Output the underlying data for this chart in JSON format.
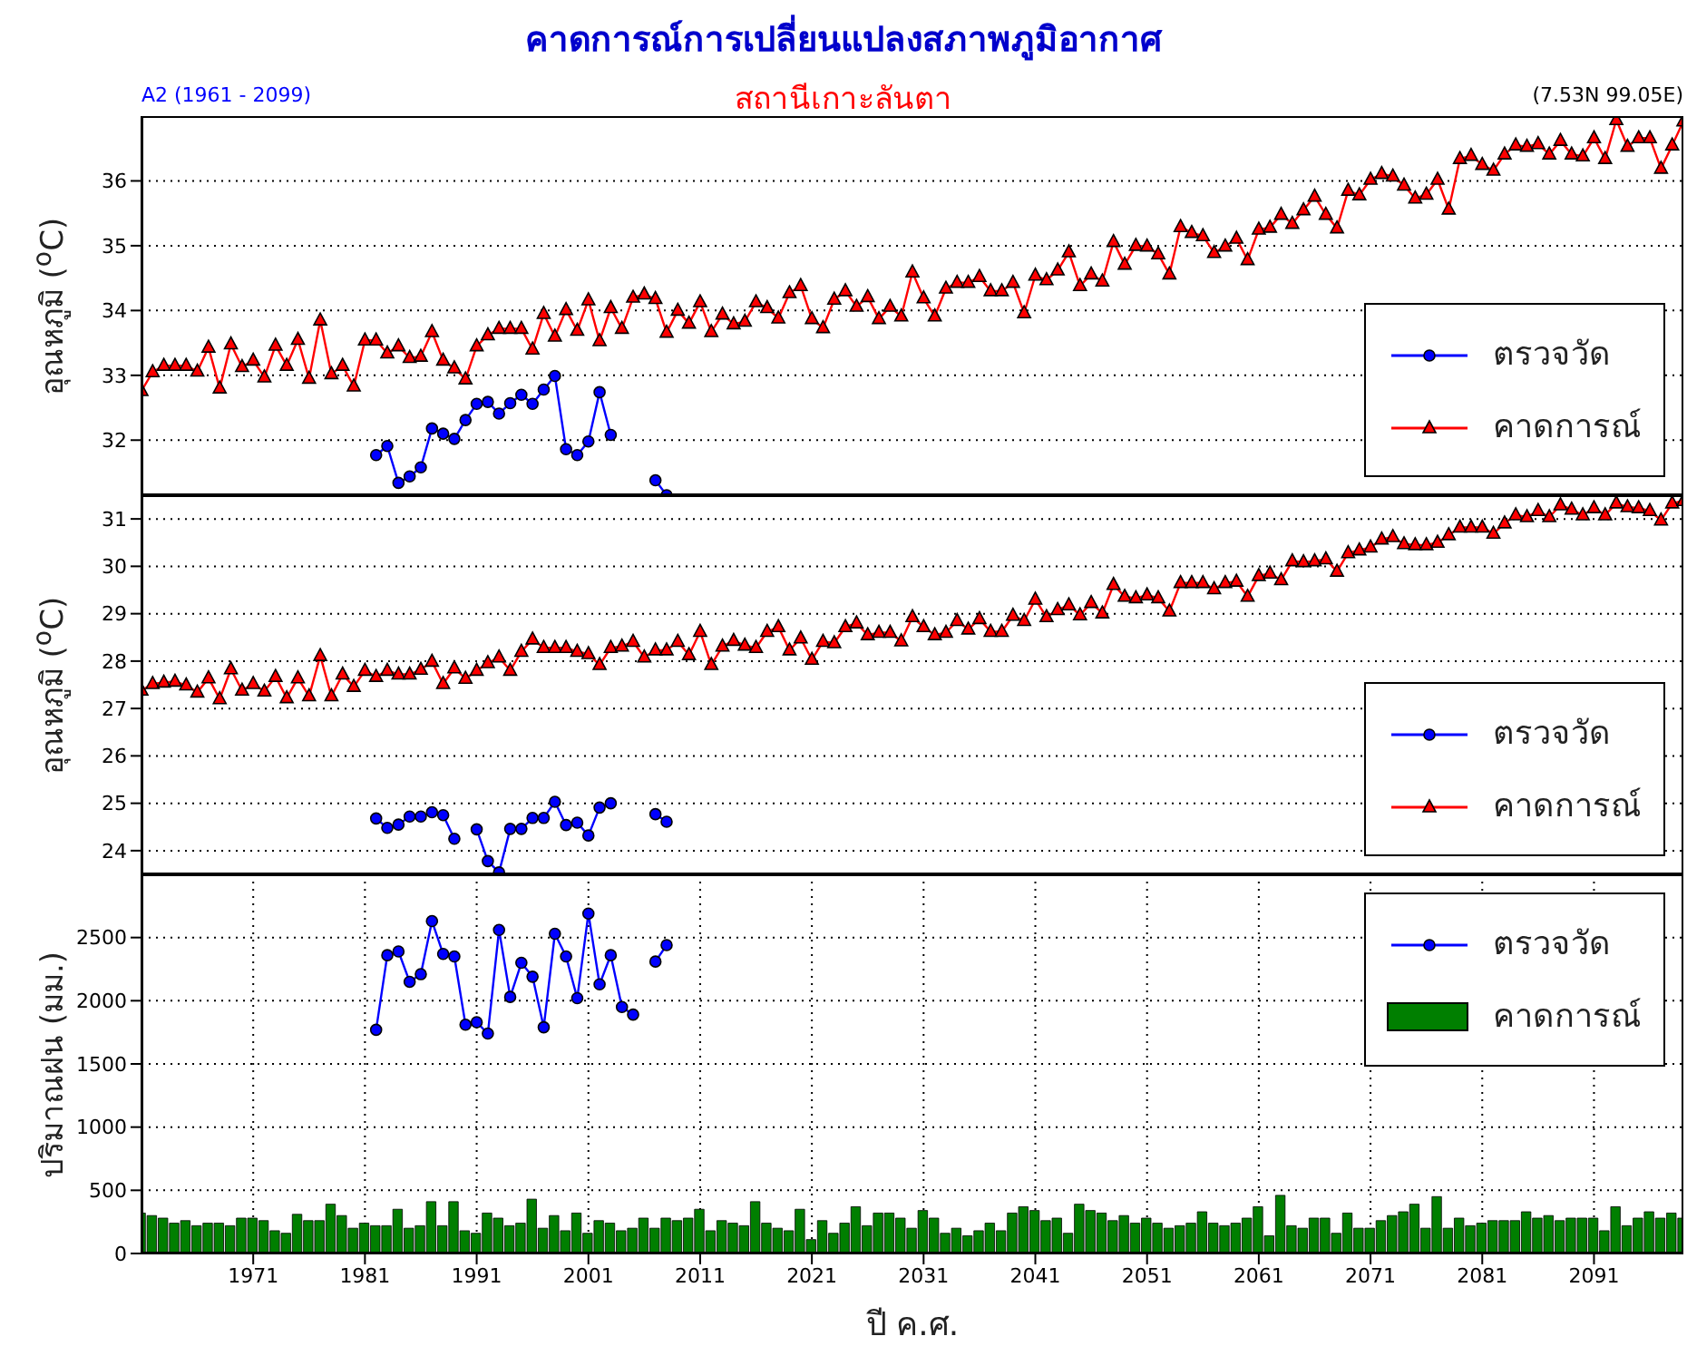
{
  "chart_data": [
    {
      "type": "line",
      "title": "คาดการณ์การเปลี่ยนแปลงสภาพภูมิอากาศ",
      "subtitle": "สถานีเกาะลันตา",
      "annotations": [
        "A2 (1961 - 2099)",
        "(7.53N 99.05E)"
      ],
      "ylabel": "อุณหภูมิ ($^{o}$C)",
      "xlim": [
        1961,
        2099
      ],
      "xticks": [
        1971,
        1981,
        1991,
        2001,
        2011,
        2021,
        2031,
        2041,
        2051,
        2061,
        2071,
        2081,
        2091
      ],
      "ylim": [
        31.15,
        37
      ],
      "yticks": [
        32,
        33,
        34,
        35,
        36
      ],
      "tick_labels": "y",
      "grid": true,
      "legend": "bottom right",
      "x": [
        1961,
        1962,
        1963,
        1964,
        1965,
        1966,
        1967,
        1968,
        1969,
        1970,
        1971,
        1972,
        1973,
        1974,
        1975,
        1976,
        1977,
        1978,
        1979,
        1980,
        1981,
        1982,
        1983,
        1984,
        1985,
        1986,
        1987,
        1988,
        1989,
        1990,
        1991,
        1992,
        1993,
        1994,
        1995,
        1996,
        1997,
        1998,
        1999,
        2000,
        2001,
        2002,
        2003,
        2004,
        2005,
        2006,
        2007,
        2008,
        2009,
        2010,
        2011,
        2012,
        2013,
        2014,
        2015,
        2016,
        2017,
        2018,
        2019,
        2020,
        2021,
        2022,
        2023,
        2024,
        2025,
        2026,
        2027,
        2028,
        2029,
        2030,
        2031,
        2032,
        2033,
        2034,
        2035,
        2036,
        2037,
        2038,
        2039,
        2040,
        2041,
        2042,
        2043,
        2044,
        2045,
        2046,
        2047,
        2048,
        2049,
        2050,
        2051,
        2052,
        2053,
        2054,
        2055,
        2056,
        2057,
        2058,
        2059,
        2060,
        2061,
        2062,
        2063,
        2064,
        2065,
        2066,
        2067,
        2068,
        2069,
        2070,
        2071,
        2072,
        2073,
        2074,
        2075,
        2076,
        2077,
        2078,
        2079,
        2080,
        2081,
        2082,
        2083,
        2084,
        2085,
        2086,
        2087,
        2088,
        2089,
        2090,
        2091,
        2092,
        2093,
        2094,
        2095,
        2096,
        2097,
        2098,
        2099
      ],
      "series": [
        {
          "name": "ตรวจวัด",
          "marker": "circle",
          "color": "#0000ff",
          "x": [
            1982,
            1983,
            1984,
            1985,
            1986,
            1987,
            1988,
            1989,
            1990,
            1991,
            1992,
            1993,
            1994,
            1995,
            1996,
            1997,
            1998,
            1999,
            2000,
            2001,
            2002,
            2003,
            2004,
            2005,
            2006,
            2007,
            2008
          ],
          "values": [
            31.77,
            31.91,
            31.34,
            31.44,
            31.58,
            32.18,
            32.1,
            32.02,
            32.31,
            32.56,
            32.59,
            32.41,
            32.57,
            32.7,
            32.56,
            32.78,
            32.99,
            31.86,
            31.77,
            31.98,
            32.74,
            32.08,
            null,
            null,
            null,
            31.38,
            31.15
          ]
        },
        {
          "name": "คาดการณ์",
          "marker": "triangle",
          "color": "#ff0000",
          "values": [
            32.76,
            33.05,
            33.15,
            33.15,
            33.15,
            33.06,
            33.43,
            32.8,
            33.48,
            33.13,
            33.23,
            32.97,
            33.46,
            33.15,
            33.55,
            32.95,
            33.85,
            33.02,
            33.15,
            32.83,
            33.54,
            33.54,
            33.34,
            33.45,
            33.27,
            33.29,
            33.67,
            33.23,
            33.11,
            32.94,
            33.45,
            33.62,
            33.72,
            33.72,
            33.72,
            33.4,
            33.95,
            33.6,
            34.01,
            33.69,
            34.16,
            33.53,
            34.04,
            33.72,
            34.2,
            34.25,
            34.18,
            33.66,
            34.0,
            33.8,
            34.13,
            33.67,
            33.94,
            33.79,
            33.83,
            34.13,
            34.04,
            33.88,
            34.27,
            34.38,
            33.87,
            33.73,
            34.17,
            34.3,
            34.06,
            34.21,
            33.87,
            34.06,
            33.91,
            34.59,
            34.19,
            33.91,
            34.34,
            34.43,
            34.43,
            34.52,
            34.3,
            34.3,
            34.43,
            33.96,
            34.54,
            34.47,
            34.62,
            34.9,
            34.38,
            34.56,
            34.45,
            35.06,
            34.71,
            35.0,
            34.99,
            34.87,
            34.56,
            35.29,
            35.2,
            35.15,
            34.89,
            34.99,
            35.11,
            34.78,
            35.25,
            35.28,
            35.48,
            35.34,
            35.55,
            35.76,
            35.48,
            35.27,
            35.85,
            35.78,
            36.02,
            36.11,
            36.07,
            35.93,
            35.73,
            35.79,
            36.02,
            35.56,
            36.34,
            36.39,
            36.25,
            36.16,
            36.41,
            36.55,
            36.53,
            36.57,
            36.41,
            36.62,
            36.41,
            36.38,
            36.66,
            36.34,
            36.94,
            36.53,
            36.66,
            36.66,
            36.19,
            36.55,
            36.92
          ]
        }
      ]
    },
    {
      "type": "line",
      "ylabel": "อุณหภูมิ ($^{o}$C)",
      "xlim": [
        1961,
        2099
      ],
      "xticks": [
        1971,
        1981,
        1991,
        2001,
        2011,
        2021,
        2031,
        2041,
        2051,
        2061,
        2071,
        2081,
        2091
      ],
      "ylim": [
        23.5,
        31.5
      ],
      "yticks": [
        24,
        25,
        26,
        27,
        28,
        29,
        30,
        31
      ],
      "tick_labels": "y",
      "grid": true,
      "legend": "bottom right",
      "x": [
        1961,
        1962,
        1963,
        1964,
        1965,
        1966,
        1967,
        1968,
        1969,
        1970,
        1971,
        1972,
        1973,
        1974,
        1975,
        1976,
        1977,
        1978,
        1979,
        1980,
        1981,
        1982,
        1983,
        1984,
        1985,
        1986,
        1987,
        1988,
        1989,
        1990,
        1991,
        1992,
        1993,
        1994,
        1995,
        1996,
        1997,
        1998,
        1999,
        2000,
        2001,
        2002,
        2003,
        2004,
        2005,
        2006,
        2007,
        2008,
        2009,
        2010,
        2011,
        2012,
        2013,
        2014,
        2015,
        2016,
        2017,
        2018,
        2019,
        2020,
        2021,
        2022,
        2023,
        2024,
        2025,
        2026,
        2027,
        2028,
        2029,
        2030,
        2031,
        2032,
        2033,
        2034,
        2035,
        2036,
        2037,
        2038,
        2039,
        2040,
        2041,
        2042,
        2043,
        2044,
        2045,
        2046,
        2047,
        2048,
        2049,
        2050,
        2051,
        2052,
        2053,
        2054,
        2055,
        2056,
        2057,
        2058,
        2059,
        2060,
        2061,
        2062,
        2063,
        2064,
        2065,
        2066,
        2067,
        2068,
        2069,
        2070,
        2071,
        2072,
        2073,
        2074,
        2075,
        2076,
        2077,
        2078,
        2079,
        2080,
        2081,
        2082,
        2083,
        2084,
        2085,
        2086,
        2087,
        2088,
        2089,
        2090,
        2091,
        2092,
        2093,
        2094,
        2095,
        2096,
        2097,
        2098,
        2099
      ],
      "series": [
        {
          "name": "ตรวจวัด",
          "marker": "circle",
          "color": "#0000ff",
          "x": [
            1982,
            1983,
            1984,
            1985,
            1986,
            1987,
            1988,
            1989,
            1990,
            1991,
            1992,
            1993,
            1994,
            1995,
            1996,
            1997,
            1998,
            1999,
            2000,
            2001,
            2002,
            2003,
            2004,
            2005,
            2006,
            2007,
            2008
          ],
          "values": [
            24.68,
            24.48,
            24.55,
            24.72,
            24.72,
            24.81,
            24.75,
            24.25,
            null,
            24.45,
            23.78,
            23.54,
            24.46,
            24.46,
            24.69,
            24.69,
            25.03,
            24.54,
            24.59,
            24.32,
            24.91,
            25.0,
            null,
            null,
            null,
            24.77,
            24.61
          ]
        },
        {
          "name": "คาดการณ์",
          "marker": "triangle",
          "color": "#ff0000",
          "values": [
            27.38,
            27.52,
            27.55,
            27.57,
            27.49,
            27.34,
            27.64,
            27.2,
            27.83,
            27.38,
            27.52,
            27.36,
            27.67,
            27.22,
            27.64,
            27.26,
            28.11,
            27.26,
            27.72,
            27.46,
            27.8,
            27.67,
            27.8,
            27.72,
            27.72,
            27.82,
            27.99,
            27.52,
            27.85,
            27.63,
            27.8,
            27.96,
            28.08,
            27.8,
            28.2,
            28.46,
            28.28,
            28.28,
            28.28,
            28.2,
            28.15,
            27.92,
            28.28,
            28.31,
            28.41,
            28.08,
            28.23,
            28.23,
            28.41,
            28.13,
            28.62,
            27.92,
            28.31,
            28.43,
            28.33,
            28.28,
            28.62,
            28.72,
            28.23,
            28.48,
            28.03,
            28.41,
            28.38,
            28.72,
            28.8,
            28.55,
            28.6,
            28.6,
            28.42,
            28.93,
            28.72,
            28.55,
            28.6,
            28.85,
            28.67,
            28.89,
            28.62,
            28.62,
            28.96,
            28.85,
            29.3,
            28.93,
            29.08,
            29.18,
            28.97,
            29.23,
            29.01,
            29.61,
            29.36,
            29.33,
            29.39,
            29.33,
            29.05,
            29.65,
            29.65,
            29.65,
            29.52,
            29.65,
            29.68,
            29.36,
            29.8,
            29.85,
            29.71,
            30.11,
            30.09,
            30.11,
            30.15,
            29.89,
            30.28,
            30.34,
            30.4,
            30.57,
            30.62,
            30.47,
            30.45,
            30.45,
            30.5,
            30.66,
            30.82,
            30.82,
            30.82,
            30.69,
            30.91,
            31.08,
            31.04,
            31.17,
            31.04,
            31.29,
            31.2,
            31.08,
            31.23,
            31.08,
            31.33,
            31.25,
            31.23,
            31.17,
            30.97,
            31.33,
            31.38
          ]
        }
      ]
    },
    {
      "type": "bar",
      "ylabel": "ปริมาณฝน (มม.)",
      "xlabel": "ปี ค.ศ.",
      "xlim": [
        1961,
        2099
      ],
      "xticks": [
        1971,
        1981,
        1991,
        2001,
        2011,
        2021,
        2031,
        2041,
        2051,
        2061,
        2071,
        2081,
        2091
      ],
      "ylim": [
        0,
        3000
      ],
      "yticks": [
        0,
        500,
        1000,
        1500,
        2000,
        2500
      ],
      "grid": true,
      "legend": "top right",
      "x": [
        1961,
        1962,
        1963,
        1964,
        1965,
        1966,
        1967,
        1968,
        1969,
        1970,
        1971,
        1972,
        1973,
        1974,
        1975,
        1976,
        1977,
        1978,
        1979,
        1980,
        1981,
        1982,
        1983,
        1984,
        1985,
        1986,
        1987,
        1988,
        1989,
        1990,
        1991,
        1992,
        1993,
        1994,
        1995,
        1996,
        1997,
        1998,
        1999,
        2000,
        2001,
        2002,
        2003,
        2004,
        2005,
        2006,
        2007,
        2008,
        2009,
        2010,
        2011,
        2012,
        2013,
        2014,
        2015,
        2016,
        2017,
        2018,
        2019,
        2020,
        2021,
        2022,
        2023,
        2024,
        2025,
        2026,
        2027,
        2028,
        2029,
        2030,
        2031,
        2032,
        2033,
        2034,
        2035,
        2036,
        2037,
        2038,
        2039,
        2040,
        2041,
        2042,
        2043,
        2044,
        2045,
        2046,
        2047,
        2048,
        2049,
        2050,
        2051,
        2052,
        2053,
        2054,
        2055,
        2056,
        2057,
        2058,
        2059,
        2060,
        2061,
        2062,
        2063,
        2064,
        2065,
        2066,
        2067,
        2068,
        2069,
        2070,
        2071,
        2072,
        2073,
        2074,
        2075,
        2076,
        2077,
        2078,
        2079,
        2080,
        2081,
        2082,
        2083,
        2084,
        2085,
        2086,
        2087,
        2088,
        2089,
        2090,
        2091,
        2092,
        2093,
        2094,
        2095,
        2096,
        2097,
        2098,
        2099
      ],
      "series": [
        {
          "name": "ตรวจวัด",
          "type": "line",
          "marker": "circle",
          "color": "#0000ff",
          "x": [
            1982,
            1983,
            1984,
            1985,
            1986,
            1987,
            1988,
            1989,
            1990,
            1991,
            1992,
            1993,
            1994,
            1995,
            1996,
            1997,
            1998,
            1999,
            2000,
            2001,
            2002,
            2003,
            2004,
            2005,
            2006,
            2007,
            2008
          ],
          "values": [
            1770,
            2360,
            2390,
            2150,
            2210,
            2630,
            2370,
            2350,
            1810,
            1830,
            1740,
            2560,
            2030,
            2300,
            2190,
            1790,
            2530,
            2350,
            2020,
            2690,
            2130,
            2360,
            1950,
            1890,
            null,
            2310,
            2440
          ]
        },
        {
          "name": "คาดการณ์",
          "color": "#007f00",
          "values": [
            320,
            300,
            280,
            240,
            260,
            220,
            240,
            240,
            220,
            280,
            280,
            260,
            180,
            160,
            310,
            260,
            260,
            390,
            300,
            200,
            240,
            220,
            220,
            350,
            200,
            220,
            410,
            220,
            410,
            180,
            160,
            320,
            280,
            220,
            240,
            430,
            200,
            300,
            180,
            320,
            160,
            260,
            240,
            180,
            200,
            280,
            200,
            280,
            260,
            280,
            350,
            180,
            260,
            240,
            220,
            410,
            240,
            200,
            180,
            350,
            110,
            260,
            160,
            240,
            370,
            220,
            320,
            320,
            280,
            200,
            340,
            280,
            160,
            200,
            140,
            180,
            240,
            180,
            320,
            370,
            340,
            260,
            280,
            160,
            390,
            340,
            320,
            260,
            300,
            240,
            280,
            240,
            200,
            220,
            240,
            330,
            240,
            220,
            240,
            280,
            370,
            140,
            460,
            220,
            200,
            280,
            280,
            160,
            320,
            200,
            200,
            260,
            300,
            330,
            390,
            200,
            450,
            200,
            280,
            220,
            240,
            260,
            260,
            260,
            330,
            280,
            300,
            260,
            280,
            280,
            280,
            180,
            370,
            220,
            280,
            330,
            280,
            320,
            280
          ]
        }
      ]
    }
  ]
}
